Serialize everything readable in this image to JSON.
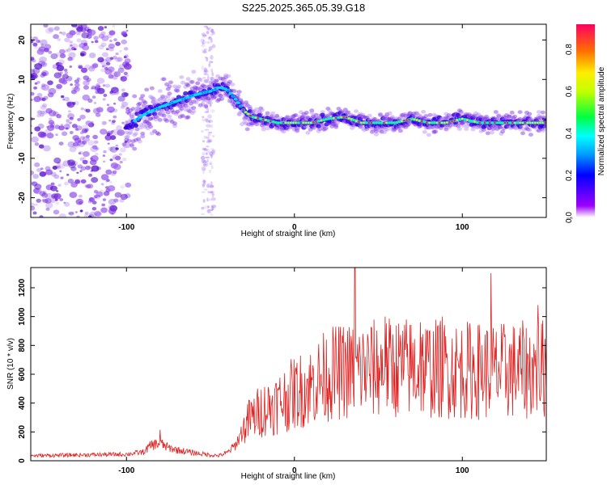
{
  "title": "S225.2025.365.05.39.G18",
  "colors": {
    "trace": "#e02020",
    "frame": "#000000",
    "scatter_purple": "#7a2be2",
    "ridge_core": "#ff2020"
  },
  "chart_data": [
    {
      "type": "heatmap",
      "xlabel": "Height of straight line (km)",
      "ylabel": "Frequency (Hz)",
      "xlim": [
        -157,
        150
      ],
      "ylim": [
        -25,
        24
      ],
      "xticks": [
        -100,
        0,
        100
      ],
      "xtick_labels": [
        "-100",
        "0",
        "100"
      ],
      "yticks": [
        -20,
        -10,
        0,
        10,
        20
      ],
      "ytick_labels": [
        "-20",
        "-10",
        "0",
        "10",
        "20"
      ],
      "grid": false,
      "ridge": {
        "x": [
          -100,
          -90,
          -80,
          -70,
          -60,
          -50,
          -45,
          -40,
          -35,
          -30,
          -25,
          -20,
          -10,
          0,
          10,
          20,
          30,
          40,
          50,
          60,
          70,
          80,
          90,
          100,
          110,
          120,
          130,
          140,
          150
        ],
        "y": [
          -2,
          1,
          3,
          4.5,
          6,
          7,
          8,
          7.5,
          5,
          2,
          0.5,
          0,
          -1,
          -1,
          -1,
          0,
          0.5,
          -1,
          -1,
          -1,
          0,
          -1,
          -1,
          0,
          -1,
          -1,
          -1,
          -1,
          -1
        ]
      },
      "colorbar": {
        "label": "Normalized spectral amplitude",
        "range": [
          0,
          0.92
        ],
        "ticks": [
          0.0,
          0.2,
          0.4,
          0.6,
          0.8
        ],
        "tick_labels": [
          "0.0",
          "0.2",
          "0.4",
          "0.6",
          "0.8"
        ]
      }
    },
    {
      "type": "line",
      "xlabel": "Height of straight line (km)",
      "ylabel": "SNR (10 * v/v)",
      "xlim": [
        -157,
        150
      ],
      "ylim": [
        0,
        1340
      ],
      "xticks": [
        -100,
        0,
        100
      ],
      "xtick_labels": [
        "-100",
        "0",
        "100"
      ],
      "yticks": [
        0,
        200,
        400,
        600,
        800,
        1000,
        1200
      ],
      "ytick_labels": [
        "0",
        "200",
        "400",
        "600",
        "800",
        "1000",
        "1200"
      ],
      "grid": false,
      "envelope": {
        "x": [
          -157,
          -100,
          -90,
          -85,
          -80,
          -75,
          -70,
          -60,
          -50,
          -45,
          -40,
          -35,
          -30,
          -25,
          -20,
          -10,
          0,
          10,
          20,
          30,
          40,
          60,
          80,
          100,
          120,
          140,
          150
        ],
        "y": [
          35,
          45,
          60,
          110,
          120,
          90,
          75,
          55,
          40,
          35,
          55,
          110,
          230,
          300,
          350,
          400,
          470,
          520,
          600,
          620,
          630,
          650,
          640,
          630,
          620,
          630,
          640
        ]
      },
      "spikes": {
        "x": [
          36,
          117,
          -80,
          -27,
          54,
          75,
          88,
          145
        ],
        "y": [
          1340,
          1300,
          215,
          420,
          1000,
          960,
          1000,
          1080
        ]
      }
    }
  ]
}
